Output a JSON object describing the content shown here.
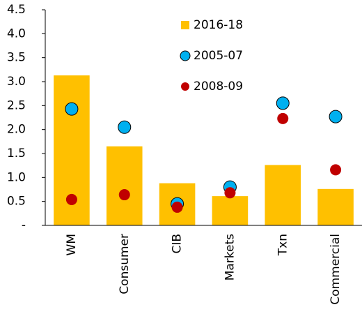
{
  "chart_data": {
    "type": "bar",
    "categories": [
      "WM",
      "Consumer",
      "CIB",
      "Markets",
      "Txn",
      "Commercial"
    ],
    "series": [
      {
        "name": "2016-18",
        "type": "bar",
        "color": "#FFC000",
        "values": [
          3.13,
          1.65,
          0.88,
          0.61,
          1.26,
          0.76
        ]
      },
      {
        "name": "2005-07",
        "type": "dot",
        "color": "#00B0F0",
        "values": [
          2.43,
          2.05,
          0.45,
          0.8,
          2.55,
          2.27
        ]
      },
      {
        "name": "2008-09",
        "type": "dot",
        "color": "#C00000",
        "values": [
          0.54,
          0.64,
          0.38,
          0.68,
          2.23,
          1.16
        ]
      }
    ],
    "ylim": [
      0,
      4.5
    ],
    "yticks": [
      {
        "value": 0,
        "label": "-"
      },
      0.5,
      {
        "value": 1,
        "label": "1.0"
      },
      1.5,
      {
        "value": 2,
        "label": "2.0"
      },
      2.5,
      {
        "value": 3,
        "label": "3.0"
      },
      3.5,
      {
        "value": 4,
        "label": "4.0"
      },
      4.5
    ],
    "legend": "top"
  }
}
